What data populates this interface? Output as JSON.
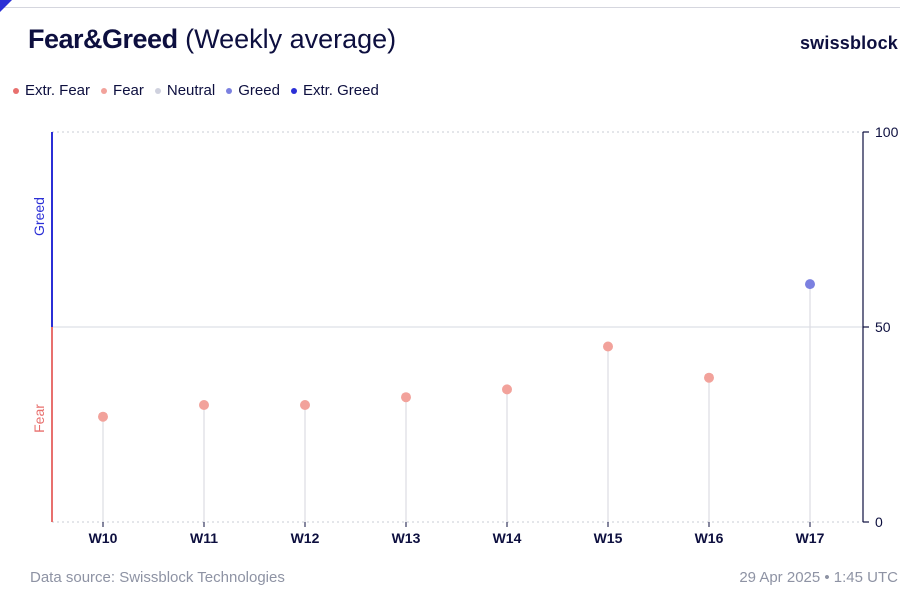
{
  "header": {
    "title": "Fear&Greed",
    "subtitle": "(Weekly average)",
    "brand": "swissblock"
  },
  "legend": [
    {
      "label": "Extr. Fear",
      "color": "#e8706e"
    },
    {
      "label": "Fear",
      "color": "#f2a29b"
    },
    {
      "label": "Neutral",
      "color": "#cfd1de"
    },
    {
      "label": "Greed",
      "color": "#7b80e0"
    },
    {
      "label": "Extr. Greed",
      "color": "#2b2fd6"
    }
  ],
  "chart_data": {
    "type": "scatter",
    "style": "lollipop",
    "categories": [
      "W10",
      "W11",
      "W12",
      "W13",
      "W14",
      "W15",
      "W16",
      "W17"
    ],
    "values": [
      27,
      30,
      30,
      32,
      34,
      45,
      37,
      61
    ],
    "point_classes": [
      "Fear",
      "Fear",
      "Fear",
      "Fear",
      "Fear",
      "Fear",
      "Fear",
      "Greed"
    ],
    "ylim": [
      0,
      100
    ],
    "yticks": [
      0,
      50,
      100
    ],
    "y_axis_side": "right",
    "zone_labels": [
      {
        "label": "Greed",
        "color": "#2b2fd6",
        "range": [
          50,
          100
        ]
      },
      {
        "label": "Fear",
        "color": "#e8706e",
        "range": [
          0,
          50
        ]
      }
    ],
    "grid": "dotted at 100, solid at 50",
    "legend_position": "top-left"
  },
  "footer": {
    "source": "Data source: Swissblock Technologies",
    "timestamp": "29 Apr 2025 • 1:45 UTC"
  }
}
